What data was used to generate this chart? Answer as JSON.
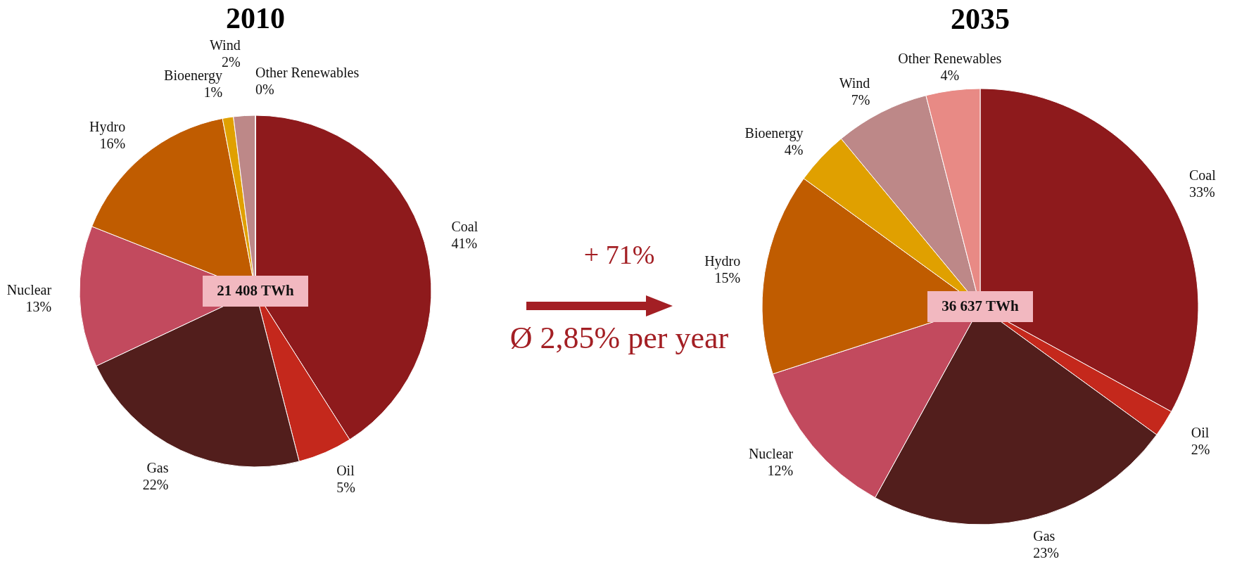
{
  "chart_data": [
    {
      "type": "pie",
      "title": "2010",
      "categories": [
        "Coal",
        "Oil",
        "Gas",
        "Nuclear",
        "Hydro",
        "Bioenergy",
        "Wind",
        "Other Renewables"
      ],
      "values": [
        41,
        5,
        22,
        13,
        16,
        1,
        2,
        0
      ],
      "colors": [
        "#8e1a1c",
        "#c4281c",
        "#521e1c",
        "#c24a5e",
        "#c05c00",
        "#e0a000",
        "#bd8888",
        "#e88a85"
      ],
      "value_labels": [
        "41%",
        "5%",
        "22%",
        "13%",
        "16%",
        "1%",
        "2%",
        "0%"
      ],
      "annotations": [
        "21 408 TWh"
      ]
    },
    {
      "type": "other",
      "annotations": [
        "+ 71%",
        "Ø 2,85% per year"
      ]
    },
    {
      "type": "pie",
      "title": "2035",
      "categories": [
        "Coal",
        "Oil",
        "Gas",
        "Nuclear",
        "Hydro",
        "Bioenergy",
        "Wind",
        "Other Renewables"
      ],
      "values": [
        33,
        2,
        23,
        12,
        15,
        4,
        7,
        4
      ],
      "colors": [
        "#8e1a1c",
        "#c4281c",
        "#521e1c",
        "#c24a5e",
        "#c05c00",
        "#e0a000",
        "#bd8888",
        "#e88a85"
      ],
      "value_labels": [
        "33%",
        "2%",
        "23%",
        "12%",
        "15%",
        "4%",
        "7%",
        "4%"
      ],
      "annotations": [
        "36 637 TWh"
      ]
    }
  ]
}
